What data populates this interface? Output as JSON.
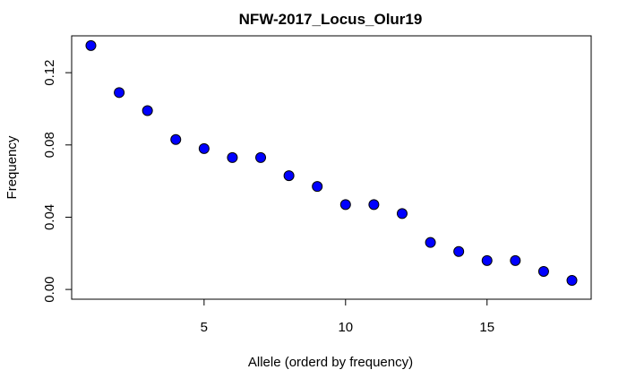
{
  "chart_data": {
    "type": "scatter",
    "title": "NFW-2017_Locus_Olur19",
    "xlabel": "Allele (orderd by frequency)",
    "ylabel": "Frequency",
    "xlim": [
      0.32,
      18.68
    ],
    "ylim": [
      -0.0054,
      0.1404
    ],
    "xticks": [
      5,
      10,
      15
    ],
    "yticks": [
      0.0,
      0.04,
      0.08,
      0.12
    ],
    "xtick_labels": [
      "5",
      "10",
      "15"
    ],
    "ytick_labels": [
      "0.00",
      "0.04",
      "0.08",
      "0.12"
    ],
    "grid": false,
    "point_fill": "#0000ff",
    "point_stroke": "#000000",
    "series": [
      {
        "x": [
          1,
          2,
          3,
          4,
          5,
          6,
          7,
          8,
          9,
          10,
          11,
          12,
          13,
          14,
          15,
          16,
          17,
          18
        ],
        "y": [
          0.135,
          0.109,
          0.099,
          0.083,
          0.078,
          0.073,
          0.073,
          0.063,
          0.057,
          0.047,
          0.047,
          0.042,
          0.026,
          0.021,
          0.016,
          0.016,
          0.01,
          0.005
        ]
      }
    ]
  }
}
